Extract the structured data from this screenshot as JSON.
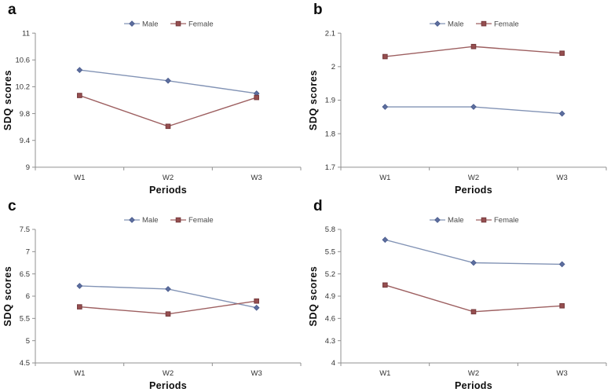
{
  "figure": {
    "ylabel": "SDQ scores",
    "xlabel": "Periods",
    "legend_labels": [
      "Male",
      "Female"
    ],
    "colors": {
      "male_line": "#8293b5",
      "male_marker_fill": "#5d6e9e",
      "male_marker_stroke": "#47598c",
      "female_line": "#9d5f60",
      "female_marker_fill": "#964f50",
      "female_marker_stroke": "#76393c",
      "axis": "#909090",
      "tick_text": "#333333",
      "legend_text": "#4a4a4a",
      "bold_label_text": "#0d0d0d"
    }
  },
  "chart_data": [
    {
      "type": "line",
      "panel": "a",
      "title": "",
      "xlabel": "Periods",
      "ylabel": "SDQ scores",
      "categories": [
        "W1",
        "W2",
        "W3"
      ],
      "series": [
        {
          "name": "Male",
          "marker": "diamond",
          "values": [
            10.45,
            10.29,
            10.1
          ]
        },
        {
          "name": "Female",
          "marker": "square",
          "values": [
            10.07,
            9.61,
            10.04
          ]
        }
      ],
      "ylim": [
        9,
        11
      ],
      "yticks": [
        9,
        9.4,
        9.8,
        10.2,
        10.6,
        11
      ],
      "ytick_labels": [
        "9",
        "9.4",
        "9.8",
        "10.2",
        "10.6",
        "11"
      ],
      "grid": false,
      "legend_position": "top-center"
    },
    {
      "type": "line",
      "panel": "b",
      "title": "",
      "xlabel": "Periods",
      "ylabel": "SDQ scores",
      "categories": [
        "W1",
        "W2",
        "W3"
      ],
      "series": [
        {
          "name": "Male",
          "marker": "diamond",
          "values": [
            1.88,
            1.88,
            1.86
          ]
        },
        {
          "name": "Female",
          "marker": "square",
          "values": [
            2.03,
            2.06,
            2.04
          ]
        }
      ],
      "ylim": [
        1.7,
        2.1
      ],
      "yticks": [
        1.7,
        1.8,
        1.9,
        2,
        2.1
      ],
      "ytick_labels": [
        "1.7",
        "1.8",
        "1.9",
        "2",
        "2.1"
      ],
      "grid": false,
      "legend_position": "top-center"
    },
    {
      "type": "line",
      "panel": "c",
      "title": "",
      "xlabel": "Periods",
      "ylabel": "SDQ scores",
      "categories": [
        "W1",
        "W2",
        "W3"
      ],
      "series": [
        {
          "name": "Male",
          "marker": "diamond",
          "values": [
            6.23,
            6.16,
            5.74
          ]
        },
        {
          "name": "Female",
          "marker": "square",
          "values": [
            5.76,
            5.6,
            5.89
          ]
        }
      ],
      "ylim": [
        4.5,
        7.5
      ],
      "yticks": [
        4.5,
        5,
        5.5,
        6,
        6.5,
        7,
        7.5
      ],
      "ytick_labels": [
        "4.5",
        "5",
        "5.5",
        "6",
        "6.5",
        "7",
        "7.5"
      ],
      "grid": false,
      "legend_position": "top-center"
    },
    {
      "type": "line",
      "panel": "d",
      "title": "",
      "xlabel": "Periods",
      "ylabel": "SDQ scores",
      "categories": [
        "W1",
        "W2",
        "W3"
      ],
      "series": [
        {
          "name": "Male",
          "marker": "diamond",
          "values": [
            5.66,
            5.35,
            5.33
          ]
        },
        {
          "name": "Female",
          "marker": "square",
          "values": [
            5.05,
            4.69,
            4.77
          ]
        }
      ],
      "ylim": [
        4,
        5.8
      ],
      "yticks": [
        4,
        4.3,
        4.6,
        4.9,
        5.2,
        5.5,
        5.8
      ],
      "ytick_labels": [
        "4",
        "4.3",
        "4.6",
        "4.9",
        "5.2",
        "5.5",
        "5.8"
      ],
      "grid": false,
      "legend_position": "top-center"
    }
  ]
}
